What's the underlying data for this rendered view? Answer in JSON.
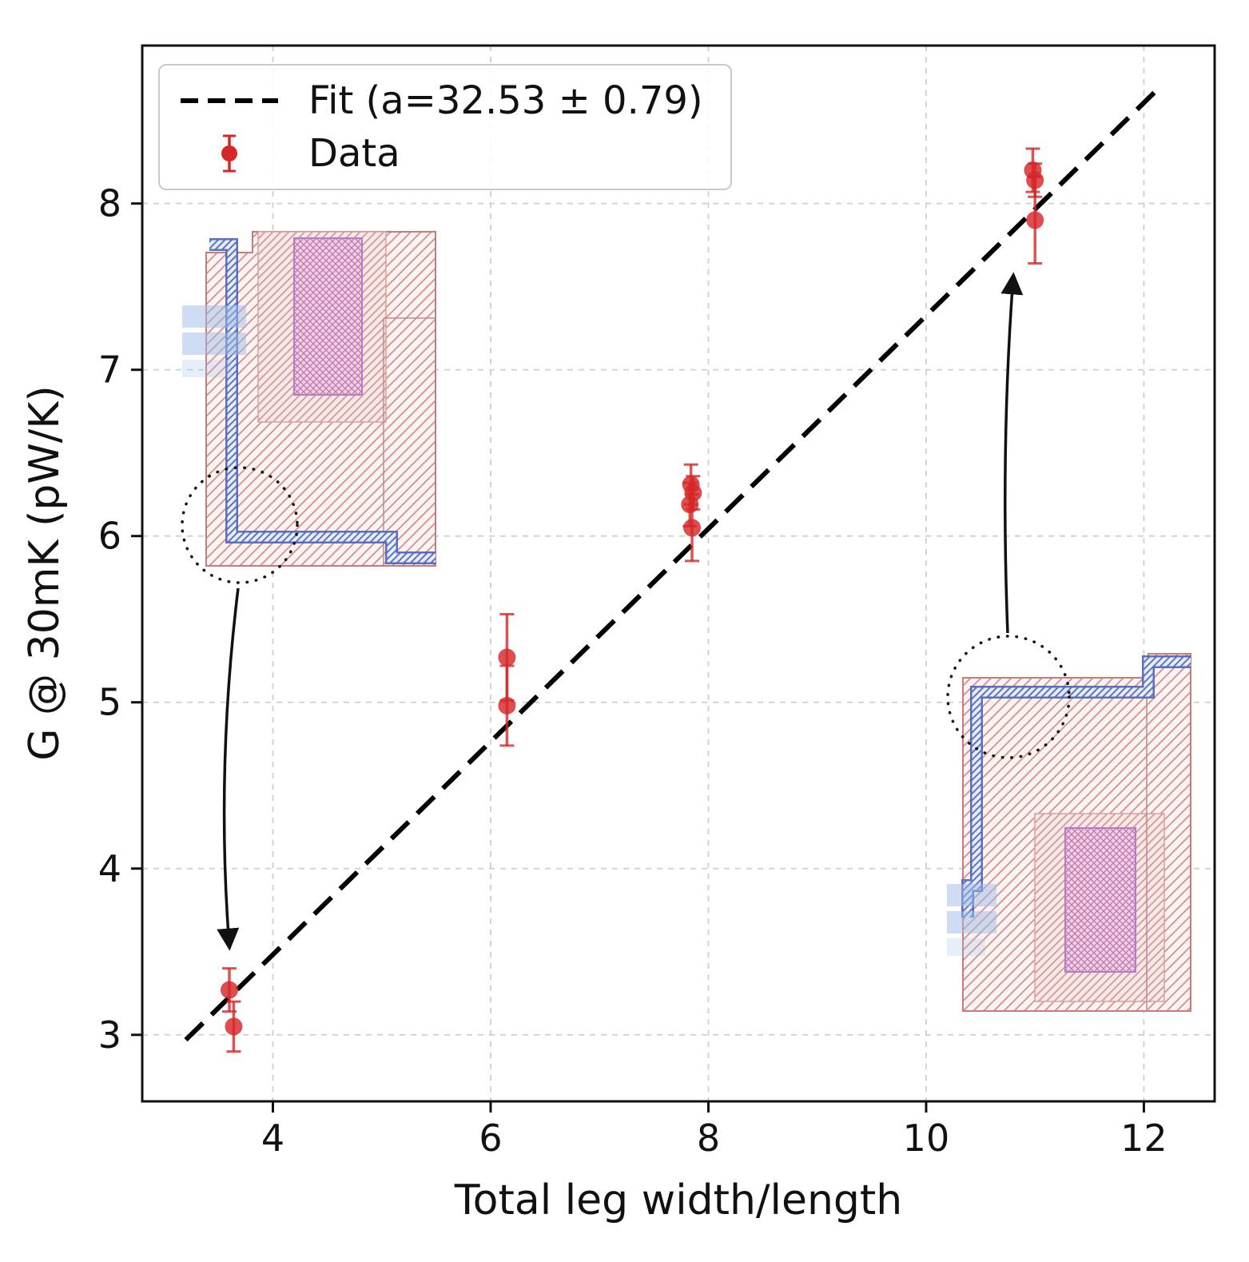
{
  "chart_data": {
    "type": "scatter",
    "title": "",
    "xlabel": "Total leg width/length",
    "ylabel": "G @ 30mK (pW/K)",
    "xlim": [
      2.8,
      12.65
    ],
    "ylim": [
      2.6,
      8.95
    ],
    "xticks": [
      4,
      6,
      8,
      10,
      12
    ],
    "yticks": [
      3,
      4,
      5,
      6,
      7,
      8
    ],
    "grid": true,
    "legend": {
      "position": "upper left",
      "entries": [
        {
          "label": "Fit (a=32.53 ± 0.79)",
          "type": "dashed-line",
          "color": "#000000"
        },
        {
          "label": "Data",
          "type": "errorbar-point",
          "color": "#d62728"
        }
      ]
    },
    "series": [
      {
        "name": "Data",
        "type": "scatter-errorbar",
        "color": "#d62728",
        "points": [
          {
            "x": 3.6,
            "y": 3.27,
            "yerr": 0.13
          },
          {
            "x": 3.64,
            "y": 3.05,
            "yerr": 0.15
          },
          {
            "x": 6.15,
            "y": 5.27,
            "yerr": 0.26
          },
          {
            "x": 6.15,
            "y": 4.98,
            "yerr": 0.24
          },
          {
            "x": 7.84,
            "y": 6.31,
            "yerr": 0.12
          },
          {
            "x": 7.86,
            "y": 6.26,
            "yerr": 0.1
          },
          {
            "x": 7.83,
            "y": 6.19,
            "yerr": 0.13
          },
          {
            "x": 7.85,
            "y": 6.05,
            "yerr": 0.2
          },
          {
            "x": 10.98,
            "y": 8.2,
            "yerr": 0.13
          },
          {
            "x": 11.0,
            "y": 8.14,
            "yerr": 0.1
          },
          {
            "x": 11.0,
            "y": 7.9,
            "yerr": 0.26
          }
        ]
      },
      {
        "name": "Fit",
        "type": "line-dashed",
        "color": "#000000",
        "a": 32.53,
        "a_err": 0.79,
        "x": [
          3.2,
          12.1
        ],
        "y": [
          2.97,
          8.67
        ]
      }
    ],
    "annotations": [
      {
        "type": "inset-image",
        "name": "chip-leg-layout-detail-left",
        "desc": "micro-fabricated detector leg layout (blue trace, red hatched membrane, pink absorber)"
      },
      {
        "type": "inset-image",
        "name": "chip-leg-layout-detail-right",
        "desc": "micro-fabricated detector leg layout (blue trace, red hatched membrane, pink absorber)"
      },
      {
        "type": "arrow",
        "from": "chip-leg-layout-detail-left",
        "to_point": {
          "x": 3.64,
          "y": 3.3
        }
      },
      {
        "type": "arrow",
        "from": "chip-leg-layout-detail-right",
        "to_point": {
          "x": 11.0,
          "y": 7.7
        }
      }
    ]
  }
}
